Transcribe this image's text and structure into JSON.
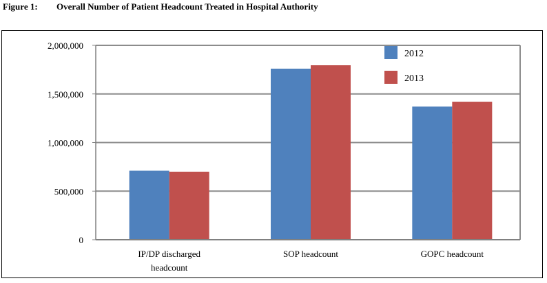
{
  "figure": {
    "number": "Figure 1:",
    "title": "Overall Number of Patient Headcount Treated in Hospital Authority"
  },
  "chart_data": {
    "type": "bar",
    "title": "",
    "xlabel": "",
    "ylabel": "",
    "categories": [
      [
        "IP/DP discharged",
        "headcount"
      ],
      [
        "SOP headcount"
      ],
      [
        "GOPC headcount"
      ]
    ],
    "series": [
      {
        "name": "2012",
        "color": "#4f81bd",
        "values": [
          710000,
          1760000,
          1370000
        ]
      },
      {
        "name": "2013",
        "color": "#c0504d",
        "values": [
          700000,
          1795000,
          1420000
        ]
      }
    ],
    "ylim": [
      0,
      2000000
    ],
    "yticks": [
      0,
      500000,
      1000000,
      1500000,
      2000000
    ],
    "ytick_labels": [
      "0",
      "500,000",
      "1,000,000",
      "1,500,000",
      "2,000,000"
    ],
    "grid": true,
    "legend_position": "top-right"
  }
}
